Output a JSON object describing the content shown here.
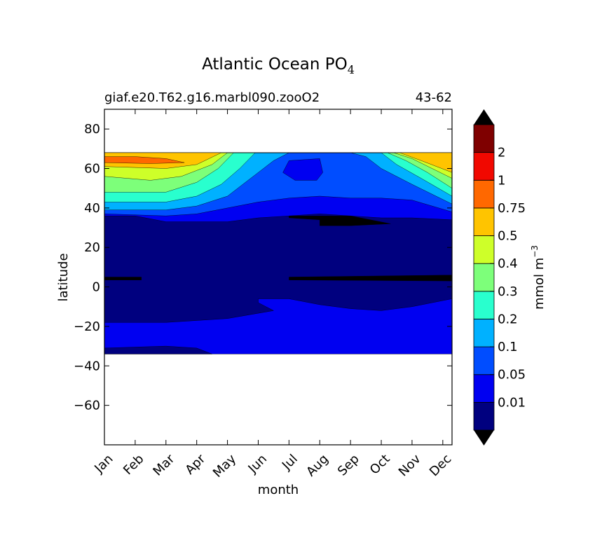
{
  "chart_data": {
    "type": "contourf",
    "title": "Atlantic Ocean PO",
    "title_subscript": "4",
    "subtitle_left": "giaf.e20.T62.g16.marbl090.zooO2",
    "subtitle_right": "43-62",
    "xlabel": "month",
    "ylabel": "latitude",
    "x_ticks": [
      "Jan",
      "Feb",
      "Mar",
      "Apr",
      "May",
      "Jun",
      "Jul",
      "Aug",
      "Sep",
      "Oct",
      "Nov",
      "Dec"
    ],
    "y_ticks": [
      80,
      60,
      40,
      20,
      0,
      -20,
      -40,
      -60
    ],
    "y_tick_labels": [
      "80",
      "60",
      "40",
      "20",
      "0",
      "−20",
      "−40",
      "−60"
    ],
    "ylim": [
      -80,
      90
    ],
    "xlim": [
      0,
      11.3
    ],
    "lat_range": [
      -34,
      68
    ],
    "colorbar": {
      "label": "mmol m",
      "label_exponent": "−3",
      "levels": [
        0.01,
        0.05,
        0.1,
        0.2,
        0.3,
        0.4,
        0.5,
        0.75,
        1,
        2
      ],
      "tick_labels": [
        "0.01",
        "0.05",
        "0.1",
        "0.2",
        "0.3",
        "0.4",
        "0.5",
        "0.75",
        "1",
        "2"
      ],
      "colors": [
        "#00007f",
        "#0000f1",
        "#004dff",
        "#00b1ff",
        "#29ffce",
        "#7dff7a",
        "#ceff29",
        "#ffc400",
        "#ff6800",
        "#f10800",
        "#7f0000"
      ],
      "extend": "both"
    },
    "grid": false
  }
}
